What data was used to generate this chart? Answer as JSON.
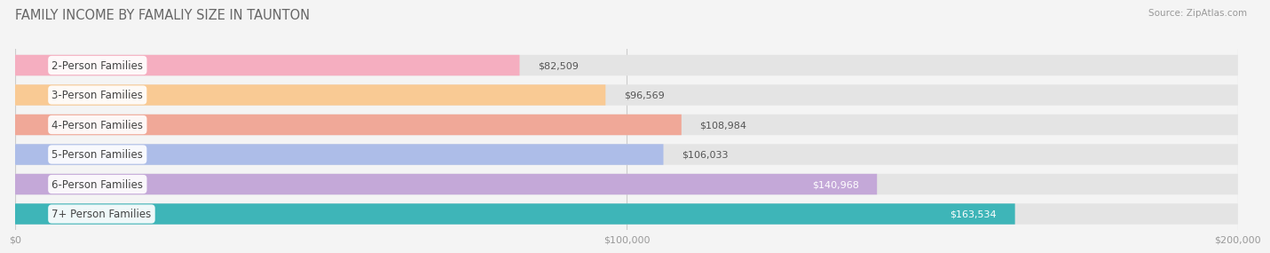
{
  "title": "FAMILY INCOME BY FAMALIY SIZE IN TAUNTON",
  "source": "Source: ZipAtlas.com",
  "categories": [
    "2-Person Families",
    "3-Person Families",
    "4-Person Families",
    "5-Person Families",
    "6-Person Families",
    "7+ Person Families"
  ],
  "values": [
    82509,
    96569,
    108984,
    106033,
    140968,
    163534
  ],
  "bar_colors": [
    "#f5aec0",
    "#f9ca94",
    "#f0a898",
    "#adbde8",
    "#c4a8d8",
    "#3eb5b8"
  ],
  "value_inside": [
    false,
    false,
    false,
    false,
    true,
    true
  ],
  "xlim": [
    0,
    200000
  ],
  "xticks": [
    0,
    100000,
    200000
  ],
  "xtick_labels": [
    "$0",
    "$100,000",
    "$200,000"
  ],
  "bg_color": "#f4f4f4",
  "bar_bg_color": "#e4e4e4",
  "title_fontsize": 10.5,
  "source_fontsize": 7.5,
  "label_fontsize": 8.5,
  "value_fontsize": 8,
  "bar_height": 0.7,
  "bar_gap": 1.0
}
